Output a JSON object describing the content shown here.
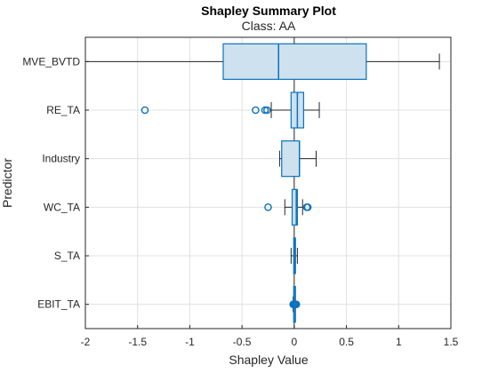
{
  "chart_data": {
    "type": "boxplot",
    "title": "Shapley Summary Plot",
    "subtitle": "Class: AA",
    "xlabel": "Shapley Value",
    "ylabel": "Predictor",
    "xlim": [
      -2,
      1.5
    ],
    "xticks": [
      -2,
      -1.5,
      -1,
      -0.5,
      0,
      0.5,
      1,
      1.5
    ],
    "xtick_labels": [
      "-2",
      "-1.5",
      "-1",
      "-0.5",
      "0",
      "0.5",
      "1",
      "1.5"
    ],
    "grid": true,
    "colors": {
      "box_fill": "#cde1ef",
      "box_edge": "#0b72bd",
      "whisker": "#262626"
    },
    "predictors": [
      {
        "name": "MVE_BVTD",
        "whisker_low": -2.0,
        "q1": -0.68,
        "median": -0.15,
        "q3": 0.69,
        "whisker_high": 1.39,
        "outliers": []
      },
      {
        "name": "RE_TA",
        "whisker_low": -0.22,
        "q1": -0.03,
        "median": 0.03,
        "q3": 0.09,
        "whisker_high": 0.24,
        "outliers": [
          -1.43,
          -0.37,
          -0.28,
          -0.26
        ]
      },
      {
        "name": "Industry",
        "whisker_low": -0.14,
        "q1": -0.12,
        "median": 0.05,
        "q3": 0.05,
        "whisker_high": 0.21,
        "outliers": []
      },
      {
        "name": "WC_TA",
        "whisker_low": -0.09,
        "q1": -0.02,
        "median": 0.02,
        "q3": 0.03,
        "whisker_high": 0.08,
        "outliers": [
          -0.25,
          0.12,
          0.13
        ]
      },
      {
        "name": "S_TA",
        "whisker_low": -0.03,
        "q1": -0.005,
        "median": 0.005,
        "q3": 0.01,
        "whisker_high": 0.03,
        "outliers": []
      },
      {
        "name": "EBIT_TA",
        "whisker_low": -0.01,
        "q1": -0.005,
        "median": 0.0,
        "q3": 0.005,
        "whisker_high": 0.01,
        "outliers": [
          -0.01,
          0.0,
          0.01,
          0.02
        ]
      }
    ]
  }
}
